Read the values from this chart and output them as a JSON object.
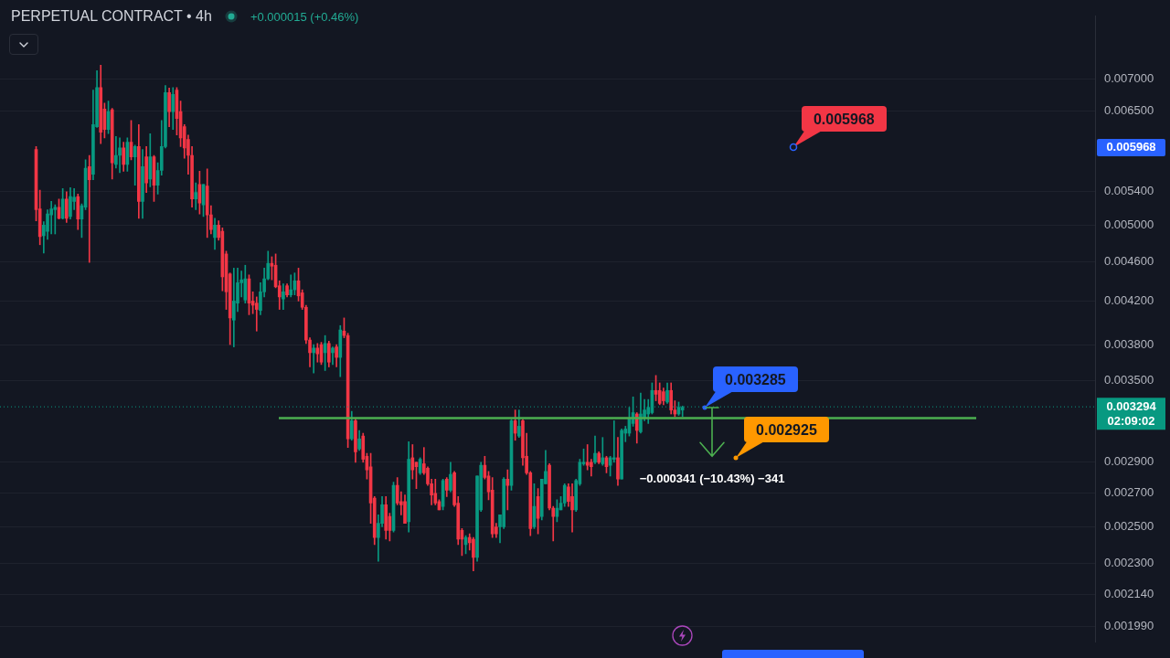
{
  "chart_data": {
    "type": "candlestick",
    "title": "PERPETUAL CONTRACT • 4h",
    "subtitle": "+0.000015 (+0.46%)",
    "categories": [
      null,
      null,
      null,
      null,
      null,
      null,
      null,
      null,
      null,
      null,
      null,
      null,
      null,
      null,
      null,
      null,
      null,
      null,
      null,
      null,
      null,
      null,
      null,
      null,
      null,
      null,
      null,
      null,
      null,
      null,
      null,
      null,
      null,
      null,
      null,
      null,
      null,
      null,
      null,
      null,
      null,
      null,
      null,
      null,
      null,
      null,
      null,
      null,
      null,
      null,
      null,
      null,
      null,
      null,
      null,
      null,
      null,
      null,
      null,
      null,
      null,
      null,
      null,
      null,
      null,
      null,
      null,
      null,
      null,
      null,
      null,
      null,
      null,
      null,
      null,
      null,
      null,
      null,
      null,
      null,
      null,
      null,
      null,
      null,
      null,
      null,
      null,
      null,
      null,
      null,
      null,
      null,
      null,
      null,
      null,
      null,
      null,
      null,
      null,
      null,
      null,
      null,
      null,
      null,
      null,
      null,
      null,
      null,
      null,
      null,
      null,
      null,
      null,
      null,
      null,
      null,
      null,
      null,
      null,
      null,
      null,
      null,
      null,
      null,
      null,
      null,
      null,
      null,
      null,
      null,
      null,
      null,
      null,
      null,
      null,
      null,
      null,
      null,
      null,
      null,
      null,
      null,
      null,
      null,
      null,
      null,
      null,
      null,
      null,
      null,
      null,
      null,
      null,
      null,
      null,
      null,
      null,
      null,
      null,
      null,
      null,
      null,
      null,
      null,
      null,
      null,
      null,
      null,
      null,
      null,
      null,
      null,
      null,
      null,
      null,
      null,
      null,
      null,
      null,
      null,
      null,
      null,
      null,
      null,
      null,
      null,
      null,
      null,
      null,
      null,
      null,
      null,
      null,
      null,
      null,
      null,
      null,
      null,
      null,
      null,
      null,
      null,
      null,
      null,
      null,
      null,
      null,
      null,
      null,
      null,
      null,
      null,
      null,
      null,
      null,
      null,
      null,
      null,
      null,
      null,
      null,
      null,
      null,
      null,
      null,
      null,
      null,
      null,
      null,
      null,
      null,
      null,
      null,
      null,
      null,
      null,
      null,
      null,
      null,
      null,
      null,
      null,
      null,
      null,
      null,
      null,
      null,
      null,
      null,
      null,
      null,
      null,
      null,
      null,
      null,
      null,
      null,
      null,
      null,
      null,
      null,
      null,
      null,
      null,
      null,
      null,
      null,
      null,
      null,
      null,
      null,
      null,
      null,
      null,
      null,
      null,
      null,
      null,
      null,
      null,
      null,
      null,
      null,
      null,
      null,
      null,
      null,
      null
    ],
    "ohlc": [
      null,
      null,
      null,
      null,
      null,
      null,
      null,
      null,
      null,
      [
        0.00595,
        0.00599,
        0.00505,
        0.00518
      ],
      [
        0.00519,
        0.00542,
        0.00478,
        0.00487
      ],
      [
        0.00488,
        0.00504,
        0.00469,
        0.005
      ],
      [
        0.00493,
        0.00518,
        0.00484,
        0.00513
      ],
      [
        0.00512,
        0.00528,
        0.0049,
        0.00519
      ],
      [
        0.00518,
        0.00524,
        0.0049,
        0.00521
      ],
      [
        0.00521,
        0.00531,
        0.00507,
        0.00508
      ],
      [
        0.00508,
        0.00544,
        0.00507,
        0.00531
      ],
      [
        0.00531,
        0.0054,
        0.00503,
        0.00508
      ],
      [
        0.0051,
        0.00545,
        0.00507,
        0.00534
      ],
      [
        0.00528,
        0.00544,
        0.00518,
        0.00533
      ],
      [
        0.00534,
        0.00537,
        0.00495,
        0.00507
      ],
      [
        0.00507,
        0.00525,
        0.00486,
        0.00523
      ],
      [
        0.00521,
        0.00581,
        0.00518,
        0.0057
      ],
      [
        0.00572,
        0.00587,
        0.00459,
        0.00555
      ],
      [
        0.00562,
        0.00682,
        0.00555,
        0.0063
      ],
      [
        0.00627,
        0.00713,
        0.00626,
        0.00686
      ],
      [
        0.00686,
        0.00722,
        0.00603,
        0.00619
      ],
      [
        0.00653,
        0.00662,
        0.00611,
        0.00623
      ],
      [
        0.00623,
        0.00665,
        0.00617,
        0.00649
      ],
      [
        0.00652,
        0.00654,
        0.00556,
        0.00577
      ],
      [
        0.00575,
        0.00613,
        0.0057,
        0.00587
      ],
      [
        0.00587,
        0.00611,
        0.00564,
        0.00597
      ],
      [
        0.00597,
        0.00605,
        0.00566,
        0.00575
      ],
      [
        0.00575,
        0.00611,
        0.00566,
        0.00605
      ],
      [
        0.00605,
        0.00636,
        0.00581,
        0.00585
      ],
      [
        0.00585,
        0.00601,
        0.00548,
        0.00599
      ],
      [
        0.00599,
        0.0063,
        0.00508,
        0.00528
      ],
      [
        0.00528,
        0.00595,
        0.00508,
        0.00572
      ],
      [
        0.00585,
        0.00599,
        0.00539,
        0.00551
      ],
      [
        0.00556,
        0.00617,
        0.00546,
        0.00585
      ],
      [
        0.00585,
        0.00587,
        0.00528,
        0.00548
      ],
      [
        0.00548,
        0.00577,
        0.00537,
        0.00567
      ],
      [
        0.00567,
        0.00636,
        0.00561,
        0.00599
      ],
      [
        0.00599,
        0.00689,
        0.00597,
        0.00678
      ],
      [
        0.00678,
        0.00685,
        0.00627,
        0.00649
      ],
      [
        0.00649,
        0.00686,
        0.00623,
        0.00675
      ],
      [
        0.00682,
        0.00686,
        0.00615,
        0.00639
      ],
      [
        0.00649,
        0.00665,
        0.00599,
        0.00611
      ],
      [
        0.00627,
        0.0063,
        0.00583,
        0.00597
      ],
      [
        0.00609,
        0.00615,
        0.00562,
        0.00587
      ],
      [
        0.00587,
        0.00599,
        0.00521,
        0.00531
      ],
      [
        0.00531,
        0.00551,
        0.00518,
        0.00539
      ],
      [
        0.00549,
        0.00566,
        0.00513,
        0.00526
      ],
      [
        0.00524,
        0.00549,
        0.0051,
        0.00549
      ],
      [
        0.00547,
        0.00569,
        0.00486,
        0.00512
      ],
      [
        0.00512,
        0.00523,
        0.0049,
        0.00495
      ],
      [
        0.00486,
        0.00508,
        0.00473,
        0.005
      ],
      [
        0.005,
        0.00505,
        0.00483,
        0.00486
      ],
      [
        0.00493,
        0.00497,
        0.0043,
        0.00444
      ],
      [
        0.00468,
        0.00471,
        0.00412,
        0.00429
      ],
      [
        0.00447,
        0.00448,
        0.0038,
        0.00404
      ],
      [
        0.00402,
        0.00453,
        0.00378,
        0.0042
      ],
      [
        0.00418,
        0.00453,
        0.0041,
        0.00438
      ],
      [
        0.00438,
        0.0045,
        0.00424,
        0.00441
      ],
      [
        0.00421,
        0.00456,
        0.00418,
        0.00442
      ],
      [
        0.00442,
        0.00446,
        0.00407,
        0.00418
      ],
      [
        0.0042,
        0.00429,
        0.00408,
        0.00416
      ],
      [
        0.00418,
        0.00424,
        0.00392,
        0.00412
      ],
      [
        0.00411,
        0.00438,
        0.00407,
        0.00429
      ],
      [
        0.00429,
        0.00453,
        0.00424,
        0.00442
      ],
      [
        0.00442,
        0.00471,
        0.00441,
        0.00458
      ],
      [
        0.00458,
        0.00465,
        0.00441,
        0.00455
      ],
      [
        0.00456,
        0.00468,
        0.00433,
        0.00434
      ],
      [
        0.00435,
        0.0044,
        0.00412,
        0.00424
      ],
      [
        0.00422,
        0.00437,
        0.00412,
        0.00429
      ],
      [
        0.00435,
        0.00437,
        0.00424,
        0.00426
      ],
      [
        0.00426,
        0.00446,
        0.00424,
        0.00431
      ],
      [
        0.00431,
        0.00448,
        0.00426,
        0.0044
      ],
      [
        0.0044,
        0.00453,
        0.0042,
        0.00425
      ],
      [
        0.00428,
        0.00431,
        0.00412,
        0.00414
      ],
      [
        0.00414,
        0.00416,
        0.00381,
        0.00384
      ],
      [
        0.00384,
        0.00386,
        0.00361,
        0.00373
      ],
      [
        0.00373,
        0.0038,
        0.00356,
        0.00377
      ],
      [
        0.00377,
        0.00381,
        0.00365,
        0.00372
      ],
      [
        0.0038,
        0.00382,
        0.00363,
        0.00365
      ],
      [
        0.00373,
        0.00388,
        0.00358,
        0.00381
      ],
      [
        0.00381,
        0.00383,
        0.00361,
        0.00365
      ],
      [
        0.00373,
        0.00378,
        0.00363,
        0.00377
      ],
      [
        0.00378,
        0.0038,
        0.00361,
        0.00369
      ],
      [
        0.00369,
        0.00397,
        0.00353,
        0.00393
      ],
      [
        0.00392,
        0.00404,
        0.00386,
        0.00388
      ],
      [
        0.00388,
        0.0039,
        0.003,
        0.00306
      ],
      [
        0.00306,
        0.00326,
        0.00305,
        0.00319
      ],
      [
        0.00319,
        0.00321,
        0.0029,
        0.00297
      ],
      [
        0.00299,
        0.00312,
        0.00298,
        0.00306
      ],
      [
        0.00308,
        0.0031,
        0.0029,
        0.00292
      ],
      [
        0.00294,
        0.00296,
        0.00279,
        0.00285
      ],
      [
        0.00287,
        0.00296,
        0.00252,
        0.00264
      ],
      [
        0.00267,
        0.00268,
        0.0024,
        0.00244
      ],
      [
        0.00244,
        0.00257,
        0.00231,
        0.00252
      ],
      [
        0.00252,
        0.00268,
        0.0025,
        0.00263
      ],
      [
        0.00263,
        0.00268,
        0.00243,
        0.00248
      ],
      [
        0.00256,
        0.00258,
        0.00242,
        0.00248
      ],
      [
        0.00248,
        0.00277,
        0.00247,
        0.00275
      ],
      [
        0.00275,
        0.0028,
        0.00263,
        0.00264
      ],
      [
        0.00265,
        0.00271,
        0.00257,
        0.00263
      ],
      [
        0.00265,
        0.00269,
        0.00252,
        0.00252
      ],
      [
        0.00253,
        0.00304,
        0.00247,
        0.00292
      ],
      [
        0.00293,
        0.00302,
        0.00279,
        0.00285
      ],
      [
        0.0029,
        0.0029,
        0.00273,
        0.00287
      ],
      [
        0.00283,
        0.00293,
        0.00282,
        0.00292
      ],
      [
        0.00289,
        0.003,
        0.00282,
        0.00283
      ],
      [
        0.00286,
        0.00287,
        0.00275,
        0.00276
      ],
      [
        0.00276,
        0.00279,
        0.00263,
        0.00269
      ],
      [
        0.0027,
        0.00279,
        0.00263,
        0.00264
      ],
      [
        0.00265,
        0.00266,
        0.0026,
        0.0026
      ],
      [
        0.00262,
        0.00279,
        0.0026,
        0.00278
      ],
      [
        0.00279,
        0.0028,
        0.00268,
        0.00272
      ],
      [
        0.00272,
        0.0029,
        0.00271,
        0.00282
      ],
      [
        0.00283,
        0.00284,
        0.00262,
        0.00263
      ],
      [
        0.00264,
        0.00268,
        0.0024,
        0.00243
      ],
      [
        0.00248,
        0.00249,
        0.00234,
        0.00243
      ],
      [
        0.0024,
        0.00245,
        0.00235,
        0.00244
      ],
      [
        0.00244,
        0.00246,
        0.00237,
        0.00241
      ],
      [
        0.00243,
        0.00244,
        0.00226,
        0.00233
      ],
      [
        0.00233,
        0.00281,
        0.00231,
        0.00281
      ],
      [
        0.0026,
        0.0029,
        0.00259,
        0.00288
      ],
      [
        0.00288,
        0.00294,
        0.00279,
        0.0028
      ],
      [
        0.00281,
        0.00284,
        0.00266,
        0.00271
      ],
      [
        0.00272,
        0.0028,
        0.00244,
        0.00246
      ],
      [
        0.0025,
        0.00252,
        0.00244,
        0.00246
      ],
      [
        0.0025,
        0.00257,
        0.00241,
        0.00257
      ],
      [
        0.0025,
        0.0028,
        0.00249,
        0.00279
      ],
      [
        0.00279,
        0.00285,
        0.0026,
        0.00275
      ],
      [
        0.00275,
        0.0032,
        0.00272,
        0.00319
      ],
      [
        0.00319,
        0.00327,
        0.00305,
        0.0031
      ],
      [
        0.00308,
        0.00327,
        0.00307,
        0.00315
      ],
      [
        0.00319,
        0.0032,
        0.00288,
        0.00293
      ],
      [
        0.00294,
        0.0031,
        0.00282,
        0.00283
      ],
      [
        0.00283,
        0.00284,
        0.00245,
        0.00249
      ],
      [
        0.0025,
        0.00276,
        0.00249,
        0.00262
      ],
      [
        0.00268,
        0.00273,
        0.00246,
        0.00255
      ],
      [
        0.00256,
        0.00279,
        0.00254,
        0.00279
      ],
      [
        0.00276,
        0.00298,
        0.00276,
        0.00284
      ],
      [
        0.00288,
        0.00289,
        0.0026,
        0.00261
      ],
      [
        0.00261,
        0.00262,
        0.00242,
        0.00256
      ],
      [
        0.00256,
        0.00266,
        0.00253,
        0.00261
      ],
      [
        0.0026,
        0.00268,
        0.0026,
        0.00264
      ],
      [
        0.00264,
        0.00276,
        0.00262,
        0.00275
      ],
      [
        0.00274,
        0.00276,
        0.00262,
        0.00265
      ],
      [
        0.00268,
        0.00276,
        0.00247,
        0.0026
      ],
      [
        0.0026,
        0.00279,
        0.00259,
        0.00278
      ],
      [
        0.00276,
        0.00292,
        0.00275,
        0.0029
      ],
      [
        0.00289,
        0.00299,
        0.00288,
        0.0029
      ],
      [
        0.0029,
        0.00302,
        0.00285,
        0.00288
      ],
      [
        0.0029,
        0.00292,
        0.00281,
        0.00287
      ],
      [
        0.0029,
        0.00308,
        0.00289,
        0.00296
      ],
      [
        0.00296,
        0.00297,
        0.00289,
        0.0029
      ],
      [
        0.00289,
        0.00307,
        0.00288,
        0.00293
      ],
      [
        0.00293,
        0.00294,
        0.00283,
        0.00287
      ],
      [
        0.00288,
        0.00294,
        0.00281,
        0.00293
      ],
      [
        0.00292,
        0.00319,
        0.0029,
        0.00293
      ],
      [
        0.00293,
        0.00307,
        0.00275,
        0.00279
      ],
      [
        0.00279,
        0.00313,
        0.00279,
        0.00312
      ],
      [
        0.0031,
        0.00315,
        0.00304,
        0.00313
      ],
      [
        0.0031,
        0.00329,
        0.00308,
        0.00321
      ],
      [
        0.00317,
        0.00337,
        0.00315,
        0.00325
      ],
      [
        0.00324,
        0.00325,
        0.00303,
        0.00312
      ],
      [
        0.00311,
        0.0034,
        0.0031,
        0.00324
      ],
      [
        0.00321,
        0.00335,
        0.00319,
        0.00327
      ],
      [
        0.00324,
        0.00335,
        0.00317,
        0.00329
      ],
      [
        0.00325,
        0.00348,
        0.00324,
        0.00342
      ],
      [
        0.00342,
        0.00354,
        0.00334,
        0.00339
      ],
      [
        0.00342,
        0.00348,
        0.00331,
        0.00332
      ],
      [
        0.00341,
        0.00344,
        0.00331,
        0.00334
      ],
      [
        0.00333,
        0.00348,
        0.00332,
        0.00342
      ],
      [
        0.00342,
        0.00348,
        0.00324,
        0.00327
      ],
      [
        0.00327,
        0.00334,
        0.00322,
        0.00324
      ],
      [
        0.00324,
        0.00333,
        0.00323,
        0.00329
      ],
      [
        0.00327,
        0.0033,
        0.00322,
        0.00329
      ],
      null,
      null,
      null,
      null,
      null,
      null,
      null,
      null,
      null,
      null,
      null,
      null,
      null,
      null,
      null,
      null,
      null,
      null,
      null,
      null,
      null,
      null,
      null,
      null,
      null,
      null,
      null,
      null,
      null,
      null,
      null,
      null,
      null,
      null,
      null,
      null,
      null,
      null,
      null,
      null,
      null,
      null,
      null,
      null,
      null,
      null,
      null,
      null,
      null,
      null,
      null,
      null,
      null,
      null,
      null,
      null,
      null,
      null,
      null,
      null,
      null,
      null,
      null,
      null,
      null,
      null,
      null,
      null,
      null,
      null,
      null,
      null,
      null,
      null,
      null,
      null,
      null,
      null,
      null,
      null,
      null,
      null,
      null,
      null,
      null,
      null,
      null,
      null,
      null,
      null,
      null,
      null,
      null,
      null,
      null,
      null,
      null,
      null,
      null,
      null,
      null,
      null,
      null,
      null,
      null,
      null,
      null,
      null
    ],
    "colors": [
      null,
      null,
      null,
      null,
      null,
      null,
      null,
      null,
      null,
      "#f23645",
      "#f23645",
      "#089981",
      "#089981",
      "#089981",
      "#089981",
      "#f23645",
      "#089981",
      "#f23645",
      "#089981",
      "#089981",
      "#f23645",
      "#089981",
      "#089981",
      "#f23645",
      "#089981",
      "#089981",
      "#f23645",
      "#f23645",
      "#089981",
      "#f23645",
      "#089981",
      "#089981",
      "#f23645",
      "#089981",
      "#f23645",
      "#089981",
      "#f23645",
      "#089981",
      "#f23645",
      "#089981",
      "#f23645",
      "#089981",
      "#089981",
      "#089981",
      "#f23645",
      "#089981",
      "#f23645",
      "#f23645",
      "#f23645",
      "#f23645",
      "#f23645",
      "#089981",
      "#f23645",
      "#089981",
      "#f23645",
      "#f23645",
      "#089981",
      "#f23645",
      "#f23645",
      "#f23645",
      "#f23645",
      "#089981",
      "#089981",
      "#089981",
      "#089981",
      "#f23645",
      "#f23645",
      "#f23645",
      "#089981",
      "#089981",
      "#089981",
      "#f23645",
      "#f23645",
      "#f23645",
      "#089981",
      "#f23645",
      "#089981",
      "#089981",
      "#f23645",
      "#f23645",
      "#f23645",
      "#f23645",
      "#089981",
      "#f23645",
      "#f23645",
      "#089981",
      "#f23645",
      "#089981",
      "#f23645",
      "#089981",
      "#f23645",
      "#f23645",
      "#089981",
      "#f23645",
      "#089981",
      "#f23645",
      "#f23645",
      "#f23645",
      "#f23645",
      "#089981",
      "#089981",
      "#f23645",
      "#f23645",
      "#089981",
      "#f23645",
      "#f23645",
      "#f23645",
      "#089981",
      "#f23645",
      "#f23645",
      "#089981",
      "#f23645",
      "#f23645",
      "#f23645",
      "#f23645",
      "#f23645",
      "#089981",
      "#f23645",
      "#089981",
      "#f23645",
      "#f23645",
      "#f23645",
      "#089981",
      "#f23645",
      "#f23645",
      "#089981",
      "#089981",
      "#f23645",
      "#f23645",
      "#f23645",
      "#f23645",
      "#089981",
      "#089981",
      "#f23645",
      "#089981",
      "#f23645",
      "#089981",
      "#f23645",
      "#f23645",
      "#f23645",
      "#089981",
      "#f23645",
      "#089981",
      "#089981",
      "#f23645",
      "#f23645",
      "#089981",
      "#089981",
      "#089981",
      "#f23645",
      "#f23645",
      "#089981",
      "#089981",
      "#089981",
      "#f23645",
      "#f23645",
      "#089981",
      "#f23645",
      "#089981",
      "#f23645",
      "#089981",
      "#089981",
      "#f23645",
      "#089981",
      "#089981",
      "#089981",
      "#089981",
      "#f23645",
      "#089981",
      "#089981",
      "#089981",
      "#089981",
      "#f23645",
      "#f23645",
      "#f23645",
      "#089981",
      "#f23645",
      "#f23645",
      "#089981",
      "#089981",
      null,
      null,
      null,
      null,
      null,
      null,
      null,
      null,
      null,
      null,
      null,
      null,
      null,
      null,
      null,
      null,
      null,
      null,
      null,
      null,
      null,
      null,
      null,
      null,
      null,
      null,
      null,
      null,
      null,
      null,
      null,
      null,
      null,
      null,
      null,
      null,
      null,
      null,
      null,
      null,
      null,
      null,
      null,
      null,
      null,
      null,
      null,
      null,
      null,
      null,
      null,
      null,
      null,
      null,
      null,
      null,
      null,
      null,
      null,
      null,
      null,
      null,
      null,
      null,
      null,
      null,
      null,
      null,
      null,
      null,
      null,
      null,
      null,
      null,
      null,
      null,
      null,
      null,
      null,
      null,
      null,
      null,
      null,
      null,
      null,
      null,
      null,
      null,
      null,
      null,
      null,
      null,
      null,
      null,
      null,
      null,
      null,
      null,
      null,
      null,
      null,
      null,
      null,
      null,
      null,
      null,
      null,
      null
    ],
    "log": true,
    "ylim": [
      0.00192,
      0.00808
    ],
    "yticks": [
      {
        "value": 0.007,
        "label": "0.007000"
      },
      {
        "value": 0.0065,
        "label": "0.006500"
      },
      {
        "value": 0.0054,
        "label": "0.005400"
      },
      {
        "value": 0.005,
        "label": "0.005000"
      },
      {
        "value": 0.0046,
        "label": "0.004600"
      },
      {
        "value": 0.0042,
        "label": "0.004200"
      },
      {
        "value": 0.0038,
        "label": "0.003800"
      },
      {
        "value": 0.0035,
        "label": "0.003500"
      },
      {
        "value": 0.0029,
        "label": "0.002900"
      },
      {
        "value": 0.0027,
        "label": "0.002700"
      },
      {
        "value": 0.0025,
        "label": "0.002500"
      },
      {
        "value": 0.0023,
        "label": "0.002300"
      },
      {
        "value": 0.00214,
        "label": "0.002140"
      },
      {
        "value": 0.00199,
        "label": "0.001990"
      }
    ],
    "grid": "y",
    "tick_labels": "y",
    "ref_lines": [
      {
        "axis": "y",
        "value": 0.00321,
        "color": "#4caf50"
      },
      {
        "axis": "y",
        "value": 0.003294,
        "label": "0.003294\n02:09:02",
        "color": "#089981",
        "line_style": "dotted"
      }
    ],
    "annotations": [
      "0.005968",
      {
        "text": "0.003285",
        "y": 0.003285
      },
      "0.002925",
      "−0.000341 (−10.43%) −341"
    ]
  }
}
